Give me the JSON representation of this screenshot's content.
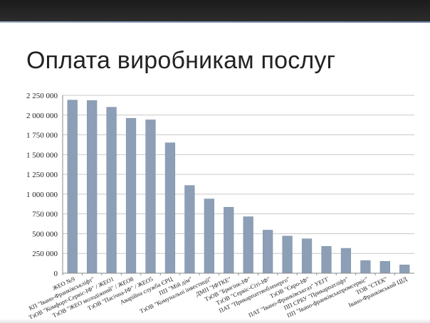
{
  "slide": {
    "title": "Оплата виробникам послуг"
  },
  "colors": {
    "bar": "#8c9fb6",
    "bar_stroke": "#7b8ea6",
    "grid": "#c9c9c9",
    "axis": "#8a8a8a",
    "topbar": "#222222",
    "accent": "#7f93b0"
  },
  "chart_data": {
    "type": "bar",
    "title": "",
    "xlabel": "",
    "ylabel": "",
    "ylim": [
      0,
      2250000
    ],
    "yticks": [
      {
        "value": 0,
        "label": "0"
      },
      {
        "value": 250000,
        "label": "250 000"
      },
      {
        "value": 500000,
        "label": "500 000"
      },
      {
        "value": 750000,
        "label": "750 000"
      },
      {
        "value": 1000000,
        "label": "1 000 000"
      },
      {
        "value": 1250000,
        "label": "1 250 000"
      },
      {
        "value": 1500000,
        "label": "1 500 000"
      },
      {
        "value": 1750000,
        "label": "1 750 000"
      },
      {
        "value": 2000000,
        "label": "2 000 000"
      },
      {
        "value": 2250000,
        "label": "2 250 000"
      }
    ],
    "grid": true,
    "legend": "none",
    "categories": [
      "ЖЕО №9",
      "КП \"Івано-Франківськліфт\"",
      "ТзОВ \"Комфорт-Сервіс-ІФ\" / ЖЕО1",
      "ТзОВ \"ЖЕО молодіжний\" / ЖЕО8",
      "ТзОВ \"Пасічна-ІФ\" / ЖЕО5",
      "Аварійна служба ЄРЦ",
      "ПП \"Мій дім\"",
      "ТзОВ \"Комунальні інвестиції\"",
      "ДМП \"ІФТКЕ\"",
      "ТзОВ \"Бригінк-ІФ\"",
      "ТзОВ \"Сервіс-Сіті-ІФ\"",
      "ПАТ \"Прикарпаттяобленерго\"",
      "ТзОВ \"Євро-ІФ\"",
      "ПАТ \"Івано-Франківськгаз\" УЕГГ",
      "ПП СРБУ \"Прикарпатліфт\"",
      "ПП \"Івано-франківськпромсервіс\"",
      "ТОВ \"СТЕК\"",
      "Івано-Франківський ЦІД"
    ],
    "values": [
      2190000,
      2185000,
      2100000,
      1960000,
      1940000,
      1650000,
      1110000,
      940000,
      835000,
      715000,
      545000,
      470000,
      435000,
      340000,
      315000,
      160000,
      150000,
      105000
    ]
  }
}
